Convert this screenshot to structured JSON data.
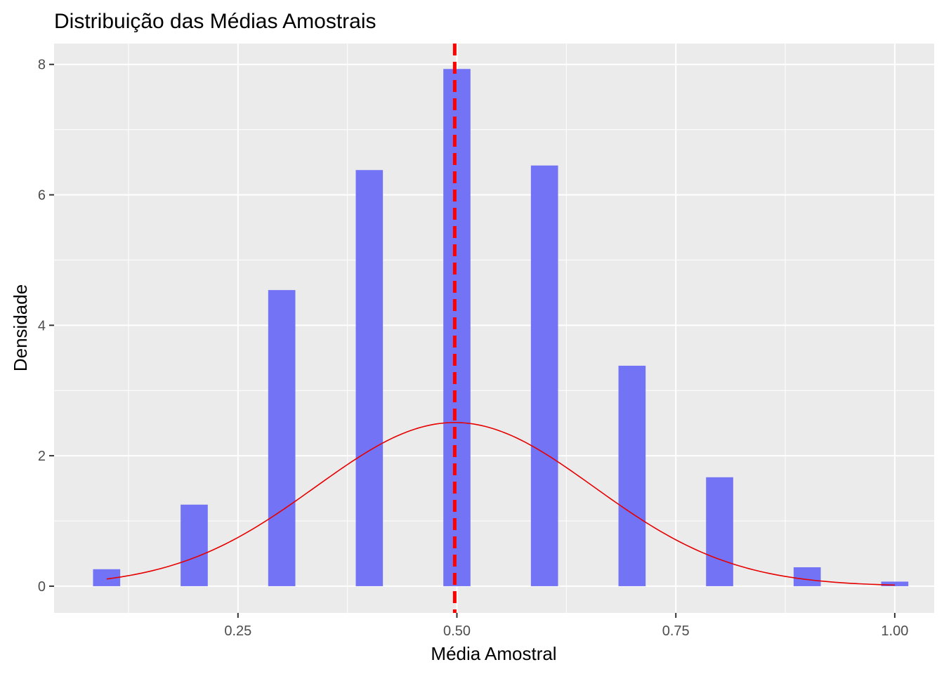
{
  "chart_data": {
    "type": "bar",
    "title": "Distribuição das Médias Amostrais",
    "xlabel": "Média Amostral",
    "ylabel": "Densidade",
    "xlim": [
      0.04,
      1.045
    ],
    "ylim": [
      -0.41,
      8.32
    ],
    "x_ticks": [
      0.25,
      0.5,
      0.75,
      1.0
    ],
    "x_tick_labels": [
      "0.25",
      "0.50",
      "0.75",
      "1.00"
    ],
    "y_ticks": [
      0,
      2,
      4,
      6,
      8
    ],
    "y_tick_labels": [
      "0",
      "2",
      "4",
      "6",
      "8"
    ],
    "grid": true,
    "legend": "none",
    "bar_width": 0.031,
    "bars": [
      {
        "x": 0.1,
        "density": 0.26
      },
      {
        "x": 0.2,
        "density": 1.25
      },
      {
        "x": 0.3,
        "density": 4.54
      },
      {
        "x": 0.4,
        "density": 6.38
      },
      {
        "x": 0.5,
        "density": 7.93
      },
      {
        "x": 0.6,
        "density": 6.45
      },
      {
        "x": 0.7,
        "density": 3.38
      },
      {
        "x": 0.8,
        "density": 1.67
      },
      {
        "x": 0.9,
        "density": 0.29
      },
      {
        "x": 1.0,
        "density": 0.07
      }
    ],
    "normal_curve": {
      "mean": 0.4975,
      "sd": 0.159,
      "x_range": [
        0.1,
        1.0
      ]
    },
    "mean_line": {
      "x": 0.4975
    },
    "colors": {
      "bars": "#7373f5",
      "curve": "#e60000",
      "mean_line": "#ff0000",
      "panel": "#ebebeb",
      "grid": "#ffffff"
    }
  }
}
